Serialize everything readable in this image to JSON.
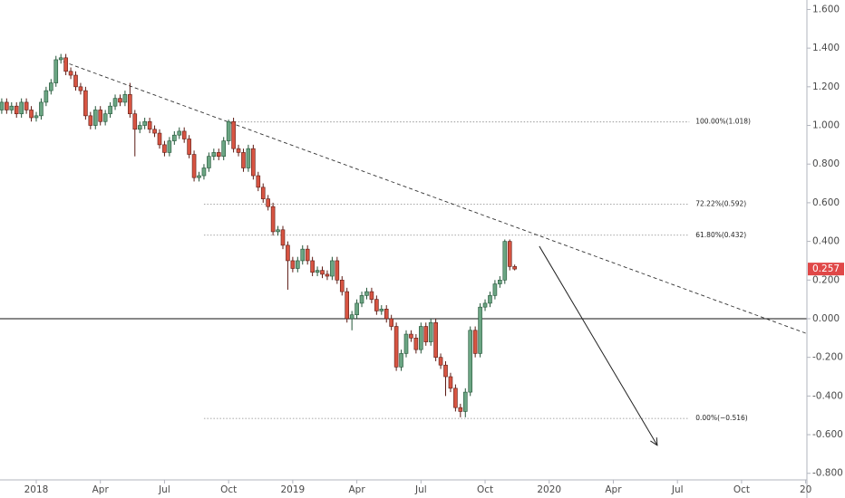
{
  "chart_data": {
    "type": "candlestick",
    "colors": {
      "up": "#6ba583",
      "up_edge": "#225437",
      "down": "#d75442",
      "down_edge": "#5b1a13",
      "last": "#e04848"
    },
    "x": [
      -7,
      -6,
      -5,
      -4,
      -3,
      -2,
      -1,
      0,
      1,
      2,
      3,
      4,
      5,
      6,
      7,
      8,
      9,
      10,
      11,
      12,
      13,
      14,
      15,
      16,
      17,
      18,
      19,
      20,
      21,
      22,
      23,
      24,
      25,
      26,
      27,
      28,
      29,
      30,
      31,
      32,
      33,
      34,
      35,
      36,
      37,
      38,
      39,
      40,
      41,
      42,
      43,
      44,
      45,
      46,
      47,
      48,
      49,
      50,
      51,
      52,
      53,
      54,
      55,
      56,
      57,
      58,
      59,
      60,
      61,
      62,
      63,
      64,
      65,
      66,
      67,
      68,
      69,
      70,
      71,
      72,
      73,
      74,
      75,
      76,
      77,
      78,
      79,
      80,
      81,
      82,
      83,
      84,
      85,
      86,
      87,
      88,
      89,
      90,
      91,
      92,
      93,
      94,
      95,
      96,
      97
    ],
    "open": [
      1.08,
      1.12,
      1.08,
      1.1,
      1.06,
      1.12,
      1.08,
      1.04,
      1.05,
      1.12,
      1.18,
      1.22,
      1.34,
      1.35,
      1.28,
      1.26,
      1.2,
      1.18,
      1.05,
      1.0,
      1.08,
      1.02,
      1.06,
      1.1,
      1.14,
      1.12,
      1.16,
      1.06,
      0.98,
      1.0,
      1.02,
      0.98,
      0.96,
      0.9,
      0.86,
      0.92,
      0.95,
      0.97,
      0.93,
      0.85,
      0.73,
      0.74,
      0.78,
      0.84,
      0.86,
      0.84,
      0.92,
      1.02,
      0.88,
      0.86,
      0.78,
      0.88,
      0.74,
      0.68,
      0.62,
      0.58,
      0.45,
      0.46,
      0.38,
      0.3,
      0.26,
      0.3,
      0.36,
      0.3,
      0.24,
      0.25,
      0.23,
      0.22,
      0.3,
      0.2,
      0.14,
      0.0,
      0.02,
      0.08,
      0.12,
      0.14,
      0.1,
      0.04,
      0.05,
      0.0,
      -0.04,
      -0.25,
      -0.18,
      -0.08,
      -0.1,
      -0.16,
      -0.04,
      -0.12,
      -0.02,
      -0.2,
      -0.24,
      -0.3,
      -0.36,
      -0.46,
      -0.48,
      -0.38,
      -0.06,
      -0.18,
      0.06,
      0.08,
      0.12,
      0.18,
      0.2,
      0.4,
      0.27
    ],
    "high": [
      1.14,
      1.14,
      1.12,
      1.12,
      1.14,
      1.14,
      1.1,
      1.07,
      1.14,
      1.2,
      1.24,
      1.36,
      1.37,
      1.37,
      1.3,
      1.28,
      1.22,
      1.2,
      1.07,
      1.1,
      1.1,
      1.08,
      1.12,
      1.16,
      1.16,
      1.18,
      1.22,
      1.08,
      1.02,
      1.04,
      1.04,
      1.0,
      0.98,
      0.92,
      0.94,
      0.97,
      0.99,
      0.99,
      0.95,
      0.87,
      0.76,
      0.8,
      0.86,
      0.88,
      0.88,
      0.94,
      1.03,
      1.04,
      0.9,
      0.88,
      0.9,
      0.9,
      0.76,
      0.7,
      0.64,
      0.6,
      0.48,
      0.48,
      0.4,
      0.32,
      0.32,
      0.38,
      0.38,
      0.32,
      0.27,
      0.27,
      0.25,
      0.32,
      0.32,
      0.22,
      0.16,
      0.04,
      0.1,
      0.14,
      0.16,
      0.16,
      0.12,
      0.07,
      0.07,
      0.02,
      -0.02,
      -0.16,
      -0.06,
      -0.06,
      -0.08,
      -0.02,
      -0.02,
      0.0,
      0.0,
      -0.18,
      -0.22,
      -0.28,
      -0.34,
      -0.44,
      -0.36,
      -0.04,
      -0.04,
      0.08,
      0.1,
      0.14,
      0.2,
      0.22,
      0.41,
      0.41,
      0.28
    ],
    "low": [
      1.06,
      1.06,
      1.06,
      1.04,
      1.04,
      1.06,
      1.02,
      1.02,
      1.03,
      1.1,
      1.16,
      1.2,
      1.32,
      1.26,
      1.24,
      1.18,
      1.16,
      1.03,
      0.98,
      0.98,
      1.0,
      1.0,
      1.04,
      1.08,
      1.1,
      1.1,
      1.04,
      0.84,
      0.96,
      0.98,
      0.96,
      0.94,
      0.88,
      0.84,
      0.84,
      0.9,
      0.93,
      0.91,
      0.83,
      0.71,
      0.71,
      0.72,
      0.76,
      0.82,
      0.82,
      0.82,
      0.9,
      0.86,
      0.84,
      0.76,
      0.76,
      0.72,
      0.66,
      0.6,
      0.56,
      0.43,
      0.43,
      0.36,
      0.15,
      0.24,
      0.24,
      0.28,
      0.28,
      0.22,
      0.22,
      0.21,
      0.2,
      0.2,
      0.18,
      0.12,
      -0.02,
      -0.06,
      0.0,
      0.06,
      0.1,
      0.08,
      0.02,
      0.02,
      -0.02,
      -0.06,
      -0.27,
      -0.27,
      -0.2,
      -0.12,
      -0.18,
      -0.18,
      -0.14,
      -0.14,
      -0.22,
      -0.26,
      -0.4,
      -0.38,
      -0.48,
      -0.51,
      -0.51,
      -0.4,
      -0.2,
      -0.2,
      0.04,
      0.06,
      0.1,
      0.16,
      0.18,
      0.25,
      0.25
    ],
    "close": [
      1.12,
      1.08,
      1.1,
      1.06,
      1.12,
      1.08,
      1.04,
      1.05,
      1.12,
      1.18,
      1.22,
      1.34,
      1.35,
      1.28,
      1.26,
      1.2,
      1.18,
      1.05,
      1.0,
      1.08,
      1.02,
      1.06,
      1.1,
      1.14,
      1.12,
      1.16,
      1.06,
      0.98,
      1.0,
      1.02,
      0.98,
      0.96,
      0.9,
      0.86,
      0.92,
      0.95,
      0.97,
      0.93,
      0.85,
      0.73,
      0.74,
      0.78,
      0.84,
      0.86,
      0.84,
      0.92,
      1.02,
      0.88,
      0.86,
      0.78,
      0.88,
      0.74,
      0.68,
      0.62,
      0.58,
      0.45,
      0.46,
      0.38,
      0.3,
      0.26,
      0.3,
      0.36,
      0.3,
      0.24,
      0.25,
      0.23,
      0.22,
      0.3,
      0.2,
      0.14,
      0.0,
      0.02,
      0.08,
      0.12,
      0.14,
      0.1,
      0.04,
      0.05,
      0.0,
      -0.04,
      -0.25,
      -0.18,
      -0.08,
      -0.1,
      -0.16,
      -0.04,
      -0.12,
      -0.02,
      -0.2,
      -0.24,
      -0.3,
      -0.36,
      -0.46,
      -0.48,
      -0.38,
      -0.06,
      -0.18,
      0.06,
      0.08,
      0.12,
      0.18,
      0.2,
      0.4,
      0.27,
      0.257
    ],
    "xlim": [
      -7.35,
      156.25
    ],
    "ylim": [
      -0.834,
      1.649
    ],
    "xticks": [
      {
        "value": 0,
        "label": "2018"
      },
      {
        "value": 13,
        "label": "Apr"
      },
      {
        "value": 26,
        "label": "Jul"
      },
      {
        "value": 39,
        "label": "Oct"
      },
      {
        "value": 52,
        "label": "2019"
      },
      {
        "value": 65,
        "label": "Apr"
      },
      {
        "value": 78,
        "label": "Jul"
      },
      {
        "value": 91,
        "label": "Oct"
      },
      {
        "value": 104,
        "label": "2020"
      },
      {
        "value": 117,
        "label": "Apr"
      },
      {
        "value": 130,
        "label": "Jul"
      },
      {
        "value": 143,
        "label": "Oct"
      },
      {
        "value": 156,
        "label": "20"
      }
    ],
    "yticks": [
      {
        "value": 1.6,
        "label": "1.600"
      },
      {
        "value": 1.4,
        "label": "1.400"
      },
      {
        "value": 1.2,
        "label": "1.200"
      },
      {
        "value": 1.0,
        "label": "1.000"
      },
      {
        "value": 0.8,
        "label": "0.800"
      },
      {
        "value": 0.6,
        "label": "0.600"
      },
      {
        "value": 0.4,
        "label": "0.400"
      },
      {
        "value": 0.2,
        "label": "0.200"
      },
      {
        "value": 0,
        "label": "0.000"
      },
      {
        "value": -0.2,
        "label": "-0.200"
      },
      {
        "value": -0.4,
        "label": "-0.400"
      },
      {
        "value": -0.6,
        "label": "-0.600"
      },
      {
        "value": -0.8,
        "label": "-0.800"
      }
    ],
    "zero_line": 0,
    "fib_levels": [
      {
        "value": 1.018,
        "label": "100.00%(1.018)",
        "x": [
          39,
          132.4
        ]
      },
      {
        "value": 0.592,
        "label": "72.22%(0.592)",
        "x": [
          34,
          132.4
        ]
      },
      {
        "value": 0.432,
        "label": "61.80%(0.432)",
        "x": [
          34,
          132.4
        ]
      },
      {
        "value": -0.516,
        "label": "0.00%(−0.516)",
        "x": [
          34,
          132.4
        ]
      }
    ],
    "trendline": {
      "x": [
        5.5,
        156
      ],
      "y": [
        1.33,
        -0.075
      ]
    },
    "arrow": {
      "x": [
        102,
        125.9
      ],
      "y": [
        0.375,
        -0.655
      ]
    }
  }
}
